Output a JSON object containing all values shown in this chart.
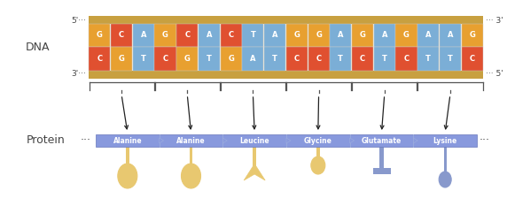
{
  "top_strand": [
    "G",
    "C",
    "A",
    "G",
    "C",
    "A",
    "C",
    "T",
    "A",
    "G",
    "G",
    "A",
    "G",
    "A",
    "G",
    "A",
    "A",
    "G"
  ],
  "bottom_strand": [
    "C",
    "G",
    "T",
    "C",
    "G",
    "T",
    "G",
    "A",
    "T",
    "C",
    "C",
    "T",
    "C",
    "T",
    "C",
    "T",
    "T",
    "C"
  ],
  "top_colors": [
    "#E8A030",
    "#E05030",
    "#7BAED6",
    "#E8A030",
    "#E05030",
    "#7BAED6",
    "#E05030",
    "#7BAED6",
    "#7BAED6",
    "#E8A030",
    "#E8A030",
    "#7BAED6",
    "#E8A030",
    "#7BAED6",
    "#E8A030",
    "#7BAED6",
    "#7BAED6",
    "#E8A030"
  ],
  "bottom_colors": [
    "#E05030",
    "#E8A030",
    "#7BAED6",
    "#E05030",
    "#E8A030",
    "#7BAED6",
    "#E8A030",
    "#7BAED6",
    "#7BAED6",
    "#E05030",
    "#E05030",
    "#7BAED6",
    "#E05030",
    "#7BAED6",
    "#E05030",
    "#7BAED6",
    "#7BAED6",
    "#E05030"
  ],
  "amino_acids": [
    "Alanine",
    "Alanine",
    "Leucine",
    "Glycine",
    "Glutamate",
    "Lysine"
  ],
  "protein_bar_color": "#8899DD",
  "dna_left_label": "DNA",
  "protein_left_label": "Protein",
  "gold_color": "#C8A040",
  "inner_color": "#F5F0E0",
  "background_color": "#FFFFFF",
  "arrow_color": "#222222",
  "brace_color": "#555555",
  "label_color": "#444444",
  "trna_yellow": "#E8C870",
  "trna_blue": "#8899CC",
  "codon_groups": [
    {
      "start": 0,
      "end": 2
    },
    {
      "start": 3,
      "end": 5
    },
    {
      "start": 6,
      "end": 8
    },
    {
      "start": 9,
      "end": 11
    },
    {
      "start": 12,
      "end": 14
    },
    {
      "start": 15,
      "end": 17
    }
  ]
}
